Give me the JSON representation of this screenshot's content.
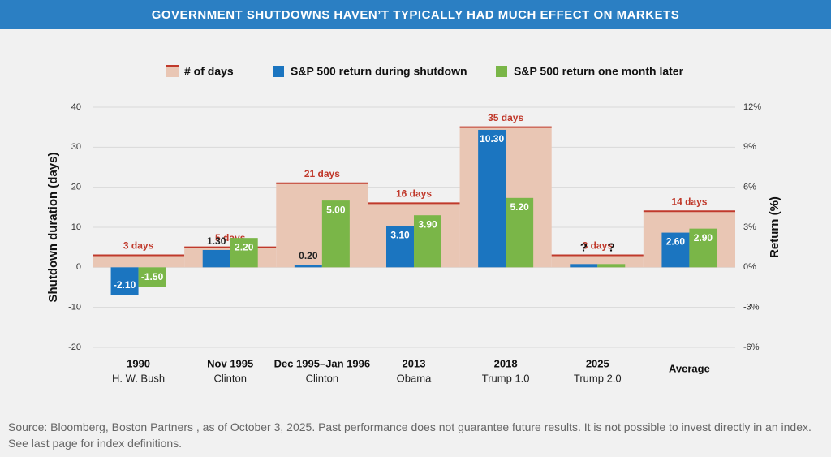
{
  "chart_data": {
    "type": "combo",
    "title": "GOVERNMENT SHUTDOWNS HAVEN’T TYPICALLY HAD MUCH EFFECT ON MARKETS",
    "y_label": "Shutdown duration (days)",
    "y2_label": "Return (%)",
    "categories": [
      "1990",
      "Nov 1995",
      "Dec 1995–Jan 1996",
      "2013",
      "2018",
      "2025",
      "Average"
    ],
    "category_subtitles": [
      "H. W. Bush",
      "Clinton",
      "Clinton",
      "Obama",
      "Trump 1.0",
      "Trump 2.0",
      null
    ],
    "ylim": [
      -20,
      40
    ],
    "yticks": [
      -20,
      -10,
      0,
      10,
      20,
      30,
      40
    ],
    "y2lim": [
      -6,
      12
    ],
    "y2ticks": [
      {
        "value": -6,
        "label": "-6%"
      },
      {
        "value": -3,
        "label": "-3%"
      },
      {
        "value": 0,
        "label": "0%"
      },
      {
        "value": 3,
        "label": "3%"
      },
      {
        "value": 6,
        "label": "6%"
      },
      {
        "value": 9,
        "label": "9%"
      },
      {
        "value": 12,
        "label": "12%"
      }
    ],
    "series": [
      {
        "name": "# of days",
        "color": "#e9c6b4",
        "line_color": "#c0392b",
        "values": [
          3,
          5,
          21,
          16,
          35,
          3,
          14
        ],
        "value_labels": [
          "3 days",
          "5 days",
          "21 days",
          "16 days",
          "35 days",
          "3 days",
          "14 days"
        ]
      },
      {
        "name": "S&P 500 return during shutdown",
        "color": "#1b75c0",
        "axis": "y2",
        "values": [
          -2.1,
          1.3,
          0.2,
          3.1,
          10.3,
          null,
          2.6
        ],
        "value_labels": [
          "-2.10",
          "1.30",
          "0.20",
          "3.10",
          "10.30",
          "?",
          "2.60"
        ]
      },
      {
        "name": "S&P 500 return one month later",
        "color": "#7ab648",
        "axis": "y2",
        "values": [
          -1.5,
          2.2,
          5.0,
          3.9,
          5.2,
          null,
          2.9
        ],
        "value_labels": [
          "-1.50",
          "2.20",
          "5.00",
          "3.90",
          "5.20",
          "?",
          "2.90"
        ]
      }
    ]
  },
  "source": "Source: Bloomberg, Boston Partners , as of October 3, 2025. Past performance does not guarantee future results. It is not possible to invest directly in an index. See last page for index definitions."
}
